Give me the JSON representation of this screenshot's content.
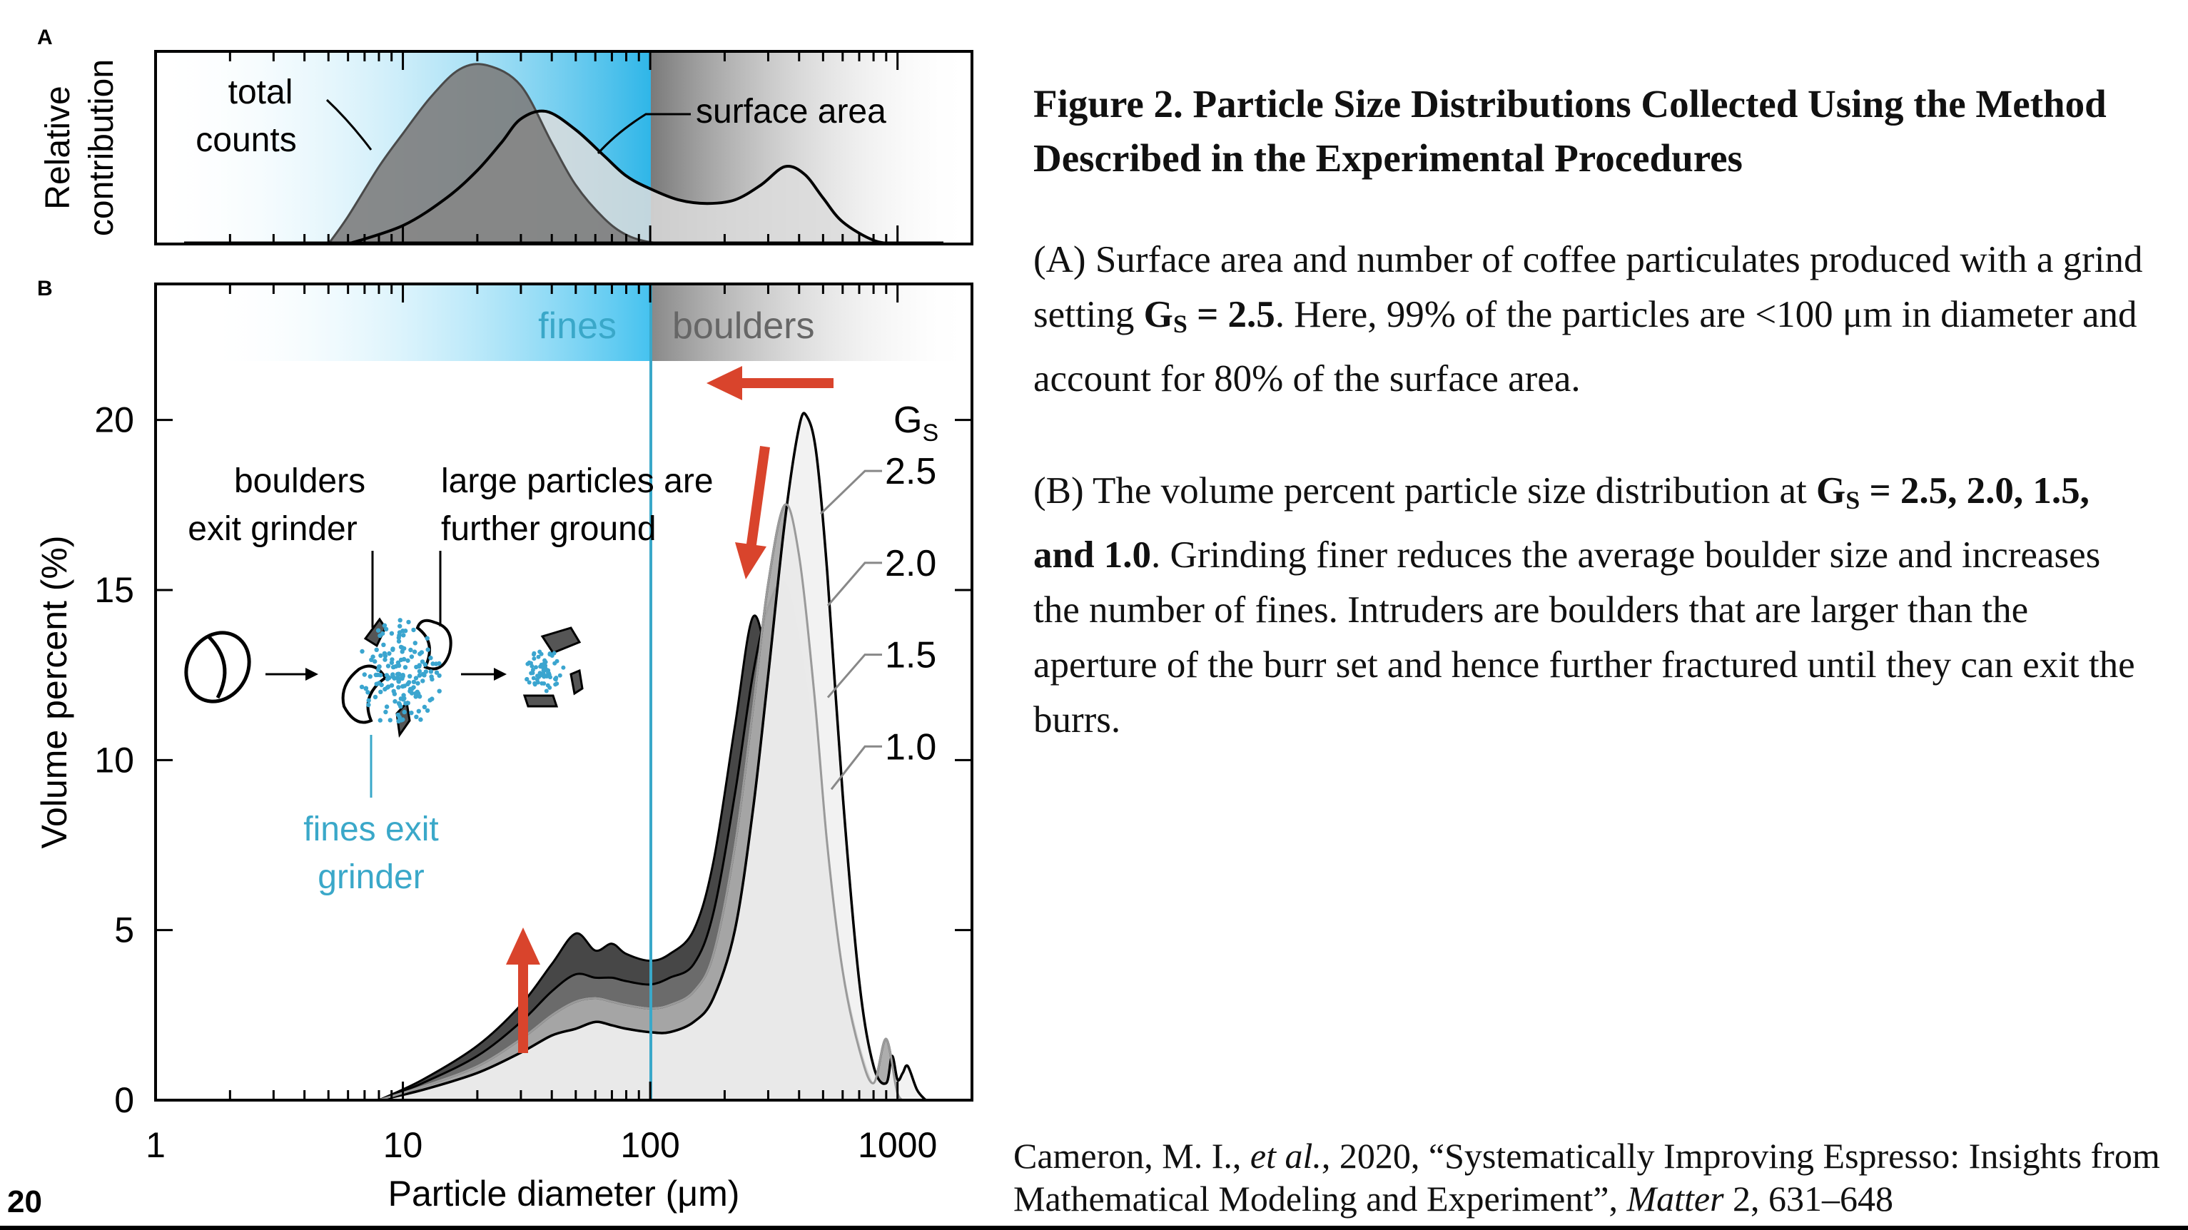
{
  "page_number": "20",
  "caption": {
    "title": "Figure 2. Particle Size Distributions Collected Using the Method Described in the Experimental Procedures",
    "para_a": [
      "(A) Surface area and number of coffee particulates produced with a grind setting ",
      "G",
      "S",
      " = 2.5",
      ". Here, 99% of the particles are <100 μm in diameter and account for 80% of the surface area."
    ],
    "para_b": [
      "(B) The volume percent particle size distribution at ",
      "G",
      "S",
      " = 2.5, 2.0, 1.5, and 1.0",
      ". Grinding finer reduces the average boulder size and increases the number of fines. Intruders are boulders that are larger than the aperture of the burr set and hence further fractured until they can exit the burrs."
    ]
  },
  "citation": {
    "part1": "Cameron, M. I., ",
    "etal": "et al.",
    "part2": ", 2020, “Systematically Improving Espresso: Insights from Mathematical Modeling and Experiment”, ",
    "journal": "Matter",
    "part3": " 2, 631–648"
  },
  "colors": {
    "fines": "#2fb6e8",
    "boulders": "#9a9a9a",
    "arrow": "#d9442c",
    "divider": "#3aa8c9"
  },
  "chart_data": [
    {
      "panel": "A",
      "type": "area",
      "x_scale": "log",
      "xlim": [
        1,
        2000
      ],
      "ylabel": "Relative contribution",
      "series": [
        {
          "name": "total counts",
          "x": [
            5,
            6,
            8,
            10,
            13,
            17,
            22,
            30,
            40,
            50,
            65,
            80,
            100,
            130
          ],
          "y": [
            0,
            0.15,
            0.42,
            0.6,
            0.8,
            0.95,
            0.97,
            0.86,
            0.55,
            0.32,
            0.14,
            0.05,
            0.01,
            0
          ]
        },
        {
          "name": "surface area",
          "x": [
            6,
            10,
            15,
            20,
            25,
            30,
            38,
            50,
            65,
            80,
            100,
            130,
            170,
            220,
            280,
            350,
            420,
            500,
            600,
            800,
            1000
          ],
          "y": [
            0,
            0.1,
            0.25,
            0.4,
            0.55,
            0.68,
            0.72,
            0.62,
            0.48,
            0.37,
            0.3,
            0.24,
            0.22,
            0.24,
            0.32,
            0.42,
            0.38,
            0.25,
            0.12,
            0.02,
            0
          ]
        }
      ]
    },
    {
      "panel": "B",
      "type": "area",
      "x_scale": "log",
      "xlim": [
        1,
        2000
      ],
      "ylim": [
        0,
        24
      ],
      "xlabel": "Particle diameter (μm)",
      "ylabel": "Volume percent (%)",
      "x_ticks": [
        "1",
        "10",
        "100",
        "1000"
      ],
      "y_ticks": [
        "0",
        "5",
        "10",
        "15",
        "20"
      ],
      "legend_title_main": "G",
      "legend_title_sub": "S",
      "bands": {
        "fines": "fines",
        "boulders": "boulders"
      },
      "annotations": {
        "boulders_exit": [
          "boulders",
          "exit grinder"
        ],
        "large_further": [
          "large particles are",
          "further ground"
        ],
        "fines_exit": [
          "fines exit",
          "grinder"
        ]
      },
      "series": [
        {
          "name": "2.5",
          "x": [
            8,
            12,
            20,
            30,
            40,
            50,
            60,
            70,
            80,
            100,
            120,
            150,
            180,
            220,
            260,
            300,
            350,
            400,
            430,
            470,
            520,
            600,
            700,
            800,
            900,
            950,
            1000,
            1050,
            1100,
            1200,
            1300
          ],
          "y": [
            0,
            0.3,
            0.8,
            1.4,
            1.9,
            2.1,
            2.3,
            2.2,
            2.1,
            2.0,
            2.0,
            2.3,
            3.0,
            5.0,
            8.5,
            12.5,
            17.0,
            19.8,
            20.1,
            19.0,
            15.5,
            9.0,
            3.5,
            1.0,
            0.5,
            1.3,
            0.6,
            0.8,
            1.0,
            0.3,
            0
          ]
        },
        {
          "name": "2.0",
          "x": [
            8,
            12,
            20,
            30,
            40,
            50,
            60,
            70,
            80,
            100,
            120,
            150,
            180,
            220,
            260,
            300,
            350,
            400,
            460,
            520,
            600,
            700,
            800,
            900,
            1000,
            1100
          ],
          "y": [
            0,
            0.4,
            1.0,
            1.8,
            2.5,
            2.9,
            3.0,
            2.9,
            2.8,
            2.7,
            2.8,
            3.2,
            4.3,
            7.5,
            11.5,
            15.2,
            17.5,
            16.0,
            12.0,
            7.5,
            3.8,
            1.5,
            0.5,
            1.8,
            0.2,
            0
          ]
        },
        {
          "name": "1.5",
          "x": [
            8,
            12,
            20,
            30,
            40,
            50,
            60,
            70,
            80,
            100,
            120,
            150,
            180,
            220,
            260,
            300,
            350,
            400,
            460,
            520,
            600,
            700,
            800,
            900
          ],
          "y": [
            0,
            0.5,
            1.3,
            2.3,
            3.2,
            3.7,
            3.6,
            3.6,
            3.5,
            3.4,
            3.6,
            4.0,
            5.5,
            9.0,
            12.5,
            14.5,
            15.2,
            13.5,
            10.5,
            7.0,
            3.8,
            1.6,
            0.4,
            0
          ]
        },
        {
          "name": "1.0",
          "x": [
            8,
            12,
            20,
            30,
            40,
            50,
            60,
            70,
            80,
            100,
            120,
            150,
            180,
            220,
            260,
            300,
            340,
            380,
            430,
            500,
            600,
            700,
            800,
            900
          ],
          "y": [
            0,
            0.6,
            1.6,
            2.8,
            4.0,
            4.9,
            4.4,
            4.6,
            4.3,
            4.1,
            4.3,
            5.0,
            7.0,
            11.0,
            14.2,
            12.8,
            11.0,
            9.5,
            7.8,
            5.5,
            3.0,
            1.2,
            0.3,
            0
          ]
        }
      ]
    }
  ]
}
